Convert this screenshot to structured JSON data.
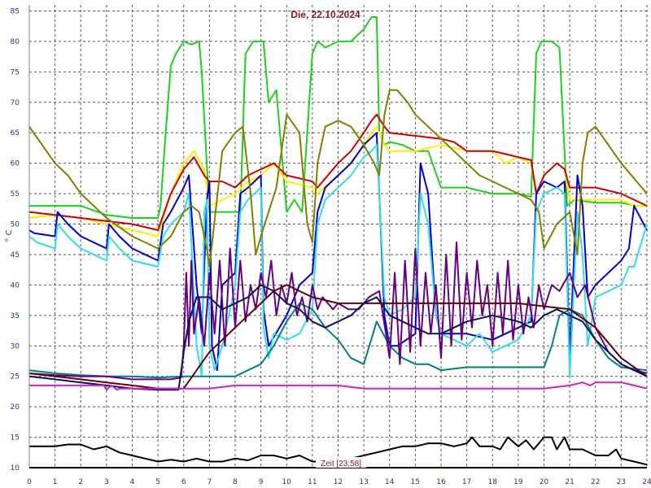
{
  "chart_data": {
    "type": "line",
    "title": "Die, 22.10.2024",
    "xlabel": "Zeit [23:58]",
    "ylabel": "° C",
    "xlim": [
      0,
      24
    ],
    "ylim": [
      10,
      86
    ],
    "x_ticks": [
      0,
      1,
      2,
      3,
      4,
      5,
      6,
      7,
      8,
      9,
      10,
      11,
      12,
      13,
      14,
      15,
      16,
      17,
      18,
      19,
      20,
      21,
      22,
      23,
      24
    ],
    "y_ticks": [
      10,
      15,
      20,
      25,
      30,
      35,
      40,
      45,
      50,
      55,
      60,
      65,
      70,
      75,
      80,
      85
    ],
    "grid": true,
    "series": [
      {
        "color": "#22cc22",
        "x": [
          0,
          1,
          2,
          3,
          4,
          5,
          5.1,
          5.3,
          5.5,
          5.7,
          6.0,
          6.3,
          6.6,
          6.7,
          7.0,
          7.5,
          8.2,
          8.4,
          8.7,
          9.1,
          9.3,
          9.6,
          10.0,
          10.3,
          10.6,
          11.0,
          11.2,
          11.5,
          12.0,
          12.5,
          13.0,
          13.3,
          13.5,
          13.6,
          13.8,
          14.0,
          14.5,
          15.0,
          15.5,
          16.0,
          17.0,
          18.0,
          19.0,
          19.5,
          19.7,
          19.9,
          20.3,
          20.6,
          20.9,
          21.2,
          22.0,
          23.0,
          23.6,
          24
        ],
        "y": [
          53,
          53,
          53,
          51.5,
          51,
          51,
          53,
          65,
          76,
          78,
          80,
          79.5,
          80,
          75,
          52,
          52,
          52,
          78,
          80,
          80,
          70,
          72,
          52,
          54,
          52,
          78,
          80,
          79,
          80,
          80,
          82,
          84,
          84,
          65,
          63,
          63.5,
          63,
          62,
          62,
          56,
          56,
          55,
          55,
          54.5,
          78,
          80,
          80,
          79,
          53,
          54,
          53.5,
          53.5,
          53,
          53
        ]
      },
      {
        "color": "#ffee00",
        "x": [
          0,
          1,
          2,
          3,
          4,
          5,
          5.5,
          6.0,
          6.4,
          6.8,
          7.0,
          7.5,
          8.0,
          8.5,
          9.0,
          9.5,
          10.0,
          11.0,
          11.2,
          12.0,
          12.5,
          13.0,
          13.3,
          13.5,
          13.8,
          14.0,
          15.0,
          16.0,
          17.0,
          18.0,
          18.5,
          19.0,
          19.5,
          19.7,
          20.0,
          20.5,
          20.8,
          21.0,
          22.0,
          23.0,
          23.5,
          24
        ],
        "y": [
          51,
          51.5,
          51,
          50,
          49,
          48,
          55,
          60,
          62,
          59,
          53,
          54,
          55,
          57,
          58,
          60,
          57,
          56,
          55,
          58,
          60,
          63,
          65,
          66,
          63,
          62,
          62,
          63,
          62,
          62,
          60,
          61,
          60,
          55,
          58,
          60,
          59,
          54,
          54,
          54,
          53,
          53
        ]
      },
      {
        "color": "#cc0000",
        "x": [
          0,
          1,
          2,
          3,
          4,
          5,
          5.5,
          6.0,
          6.4,
          6.8,
          7.0,
          7.5,
          8.0,
          8.5,
          9.0,
          9.5,
          10.0,
          11.0,
          11.2,
          12.0,
          12.5,
          13.0,
          13.3,
          13.5,
          13.8,
          14.0,
          15.0,
          16.0,
          16.5,
          17.0,
          18.0,
          18.5,
          19.0,
          19.5,
          19.7,
          20.0,
          20.5,
          20.8,
          21.0,
          22.0,
          23.0,
          23.5,
          24
        ],
        "y": [
          52,
          51.5,
          51,
          50.5,
          50,
          49,
          55,
          59,
          61,
          58,
          57,
          57,
          56,
          58,
          59,
          60,
          58,
          57,
          56,
          60,
          62,
          65,
          67,
          68,
          66,
          65,
          64.5,
          64,
          63.5,
          62,
          62,
          61.5,
          61,
          60.5,
          55,
          58,
          60,
          59,
          56,
          56,
          55,
          54,
          53
        ]
      },
      {
        "color": "#0000cc",
        "x": [
          0,
          0.2,
          1.0,
          1.1,
          1.5,
          2.0,
          3.0,
          3.1,
          3.5,
          4.0,
          5.0,
          5.2,
          5.5,
          6.0,
          6.2,
          6.5,
          6.7,
          6.9,
          7.0,
          7.1,
          7.3,
          7.5,
          8.0,
          8.2,
          8.5,
          9.0,
          9.1,
          9.3,
          10.0,
          10.5,
          11.0,
          11.2,
          11.5,
          12.0,
          12.5,
          13.0,
          13.5,
          13.8,
          14.0,
          14.3,
          15.0,
          15.2,
          15.5,
          15.8,
          16.0,
          17.0,
          18.0,
          18.5,
          19.0,
          19.5,
          19.7,
          20.0,
          20.5,
          20.8,
          21.0,
          21.3,
          21.5,
          21.7,
          22.0,
          22.5,
          23.0,
          23.3,
          23.5,
          24
        ],
        "y": [
          49,
          48.5,
          48,
          52,
          50,
          48,
          46,
          50,
          48,
          46,
          44,
          50,
          52,
          56,
          58,
          40,
          32,
          54,
          57,
          30,
          26,
          40,
          42,
          55,
          56,
          58,
          36,
          30,
          35,
          40,
          42,
          52,
          56,
          58,
          60,
          63,
          65,
          35,
          30,
          30,
          32,
          60,
          55,
          35,
          32,
          32,
          31,
          32,
          33,
          34,
          55,
          57,
          56,
          57,
          28,
          58,
          53,
          38,
          40,
          42,
          44,
          46,
          53,
          49
        ]
      },
      {
        "color": "#33ddee",
        "x": [
          0,
          0.3,
          1.0,
          1.1,
          1.5,
          2.0,
          3.0,
          3.1,
          3.5,
          4.0,
          5.0,
          5.2,
          5.5,
          6.0,
          6.2,
          6.5,
          6.7,
          6.8,
          6.9,
          7.0,
          7.2,
          7.5,
          8.0,
          8.2,
          8.5,
          9.0,
          9.1,
          9.3,
          9.5,
          10.0,
          10.5,
          11.0,
          11.2,
          11.5,
          12.0,
          12.5,
          13.0,
          13.3,
          13.5,
          13.8,
          14.0,
          14.5,
          15.0,
          15.2,
          15.5,
          15.8,
          16.0,
          17.0,
          17.5,
          18.0,
          18.5,
          19.0,
          19.5,
          19.7,
          20.0,
          20.5,
          20.8,
          21.0,
          21.3,
          21.5,
          21.7,
          22.0,
          23.0,
          23.3,
          23.5,
          24
        ],
        "y": [
          48,
          47,
          46,
          50,
          48,
          46,
          44,
          48,
          46,
          44,
          43,
          48,
          50,
          52,
          55,
          30,
          25,
          52,
          54,
          30,
          26,
          30,
          40,
          52,
          54,
          56,
          33,
          28,
          32,
          31,
          32,
          36,
          50,
          54,
          56,
          58,
          61,
          62,
          63,
          38,
          35,
          36,
          38,
          55,
          50,
          35,
          32,
          30,
          32,
          29,
          30,
          31,
          35,
          52,
          55,
          56,
          55,
          25,
          52,
          45,
          30,
          38,
          40,
          43,
          43,
          50
        ]
      },
      {
        "color": "#808000",
        "x": [
          0,
          1,
          1.5,
          2,
          3,
          4,
          5,
          5.5,
          6.0,
          6.3,
          6.6,
          6.9,
          7.0,
          7.5,
          8.0,
          8.3,
          8.6,
          8.8,
          9.0,
          9.3,
          9.6,
          10.0,
          10.5,
          10.8,
          11.0,
          11.2,
          11.5,
          12.0,
          12.5,
          13.0,
          13.4,
          13.6,
          13.8,
          14.0,
          14.3,
          14.7,
          15.0,
          15.5,
          16.0,
          17.0,
          17.5,
          18.0,
          18.5,
          19.0,
          19.5,
          19.8,
          20.0,
          20.5,
          21.0,
          21.3,
          21.5,
          21.7,
          22.0,
          22.5,
          23.0,
          24
        ],
        "y": [
          66,
          60,
          58,
          55,
          51,
          48,
          46,
          48,
          52,
          53,
          52,
          46,
          43,
          62,
          65,
          66,
          55,
          45,
          48,
          52,
          56,
          68,
          65,
          50,
          47,
          60,
          66,
          67,
          66,
          63,
          60,
          58,
          68,
          72,
          72,
          70,
          68,
          66,
          64,
          60,
          58,
          57,
          56,
          55,
          54,
          52,
          46,
          50,
          52,
          45,
          60,
          65,
          66,
          63,
          60,
          55
        ]
      },
      {
        "color": "#008080",
        "x": [
          0,
          1,
          2,
          3,
          4,
          5,
          6,
          7,
          8,
          9,
          9.5,
          10,
          10.5,
          11,
          11.5,
          12,
          12.5,
          13,
          13.5,
          14,
          14.5,
          15,
          15.5,
          16,
          17,
          18,
          19,
          20,
          20.3,
          20.6,
          21,
          21.5,
          22,
          22.5,
          23,
          24
        ],
        "y": [
          26,
          25.5,
          25.2,
          25,
          25,
          24.8,
          25,
          25,
          25,
          27,
          30,
          34,
          37,
          36,
          33,
          31,
          28,
          27,
          34,
          30,
          28,
          27,
          27,
          26,
          26.5,
          26.5,
          26.5,
          26.5,
          30,
          35,
          36,
          35,
          31,
          28,
          26.5,
          26
        ]
      },
      {
        "color": "#660080",
        "x": [
          0,
          1,
          2,
          3,
          4,
          5,
          5.5,
          5.9,
          6.0,
          6.1,
          6.2,
          6.3,
          6.4,
          6.6,
          6.8,
          7.0,
          7.2,
          7.4,
          7.6,
          7.8,
          8.0,
          8.2,
          8.4,
          8.6,
          8.8,
          9.0,
          9.2,
          9.4,
          9.6,
          9.8,
          10.0,
          10.2,
          10.4,
          10.6,
          10.8,
          11.0,
          11.2,
          11.4,
          11.6,
          11.8,
          12.0,
          12.4,
          12.8,
          13.2,
          13.6,
          14.0,
          14.2,
          14.4,
          14.6,
          14.8,
          15.0,
          15.2,
          15.4,
          15.6,
          15.8,
          16.0,
          16.2,
          16.4,
          16.6,
          16.8,
          17.0,
          17.2,
          17.4,
          17.6,
          17.8,
          18.0,
          18.2,
          18.4,
          18.6,
          18.8,
          19.0,
          19.2,
          19.4,
          19.6,
          19.8,
          20.0,
          20.3,
          20.6,
          21.0,
          21.3,
          21.6,
          22.0,
          22.5,
          23.0,
          23.5,
          24
        ],
        "y": [
          25.5,
          25.2,
          25,
          25,
          24.5,
          24.5,
          24.5,
          24.8,
          30,
          42,
          30,
          44,
          32,
          38,
          30,
          42,
          32,
          44,
          30,
          46,
          33,
          44,
          34,
          40,
          36,
          42,
          38,
          44,
          35,
          40,
          37,
          42,
          35,
          38,
          34,
          40,
          36,
          38,
          37,
          36,
          37,
          36,
          36,
          38,
          39,
          28,
          42,
          27,
          44,
          29,
          46,
          30,
          42,
          32,
          40,
          28,
          45,
          30,
          47,
          31,
          42,
          33,
          44,
          35,
          40,
          30,
          42,
          32,
          44,
          31,
          40,
          32,
          38,
          33,
          40,
          36,
          40,
          39,
          42,
          38,
          40,
          33,
          29,
          27,
          26,
          25.5
        ]
      },
      {
        "color": "#660000",
        "x": [
          0,
          1,
          2,
          3,
          4,
          5,
          6,
          6.5,
          7,
          7.5,
          8,
          8.5,
          9,
          9.5,
          10,
          11,
          12,
          13,
          14,
          15,
          16,
          17,
          18,
          19,
          20,
          21,
          22,
          23,
          24
        ],
        "y": [
          25.5,
          25,
          24.5,
          24,
          23.5,
          23,
          23,
          26,
          29,
          31,
          33,
          35,
          37,
          39,
          40,
          38,
          37,
          37,
          37,
          37,
          37,
          37,
          37,
          37,
          36.5,
          36,
          33,
          28,
          25
        ]
      },
      {
        "color": "#0b1060",
        "x": [
          0,
          1,
          2,
          3,
          4,
          5,
          5.5,
          5.8,
          6.0,
          6.2,
          6.5,
          7.0,
          7.5,
          8.0,
          8.5,
          9.0,
          9.5,
          10.0,
          10.5,
          11.0,
          11.5,
          12.0,
          12.5,
          13.0,
          13.5,
          14.0,
          14.5,
          15.0,
          15.5,
          16.0,
          17.0,
          18.0,
          19.0,
          19.5,
          20.0,
          20.5,
          21.0,
          21.5,
          22.0,
          22.5,
          23.0,
          24
        ],
        "y": [
          25,
          24.5,
          24,
          23.5,
          23,
          22.8,
          22.8,
          22.8,
          29,
          34,
          38,
          38,
          36,
          37,
          38,
          40,
          39,
          37,
          36,
          34,
          33,
          34,
          35,
          37,
          38,
          35,
          34,
          33,
          32,
          32,
          34,
          35,
          34,
          33,
          35,
          36,
          35,
          34,
          31,
          29,
          27,
          25
        ]
      },
      {
        "color": "#cc22cc",
        "x": [
          0,
          1,
          2,
          2.9,
          3.0,
          3.2,
          3.4,
          3.5,
          4,
          5,
          6,
          7,
          8,
          9,
          10,
          11,
          12,
          13,
          14,
          15,
          16,
          17,
          18,
          19,
          20,
          21,
          21.5,
          21.8,
          22,
          23,
          23.5,
          24
        ],
        "y": [
          23.5,
          23.5,
          23.5,
          23.5,
          22.8,
          23.5,
          22.8,
          23,
          23,
          23,
          23,
          23,
          23.5,
          23.5,
          23.5,
          23.5,
          23.5,
          23,
          23,
          23,
          23,
          23,
          23,
          23,
          23,
          23.5,
          24,
          23.5,
          24,
          24,
          23.5,
          23
        ]
      },
      {
        "color": "#000000",
        "x": [
          0,
          0.5,
          1,
          1.5,
          2,
          2.5,
          3,
          3.5,
          4,
          4.5,
          5,
          5.5,
          6,
          6.5,
          7,
          7.5,
          8,
          8.5,
          9,
          9.5,
          10,
          10.5,
          11,
          11.5,
          12,
          12.5,
          13,
          13.5,
          14,
          14.5,
          15,
          15.5,
          16,
          16.5,
          17,
          17.2,
          17.5,
          18,
          18.3,
          18.6,
          19,
          19.3,
          19.6,
          20,
          20.3,
          20.5,
          20.8,
          21,
          21.5,
          22,
          22.5,
          22.8,
          23,
          23.5,
          24
        ],
        "y": [
          13.5,
          13.5,
          13.5,
          13.8,
          13.8,
          13,
          13.5,
          12.5,
          12,
          11.5,
          11,
          11.3,
          11,
          11.5,
          11,
          11,
          11.5,
          11.2,
          12,
          12,
          11.5,
          12,
          11,
          11,
          11.5,
          11.5,
          12,
          12.5,
          13,
          13.5,
          13.5,
          14,
          14,
          13.5,
          14,
          15,
          13.5,
          13.5,
          13,
          15,
          13.5,
          14.5,
          13,
          15,
          15,
          13,
          15,
          13,
          13,
          12,
          12,
          13,
          11.5,
          11,
          10.5
        ]
      }
    ]
  }
}
